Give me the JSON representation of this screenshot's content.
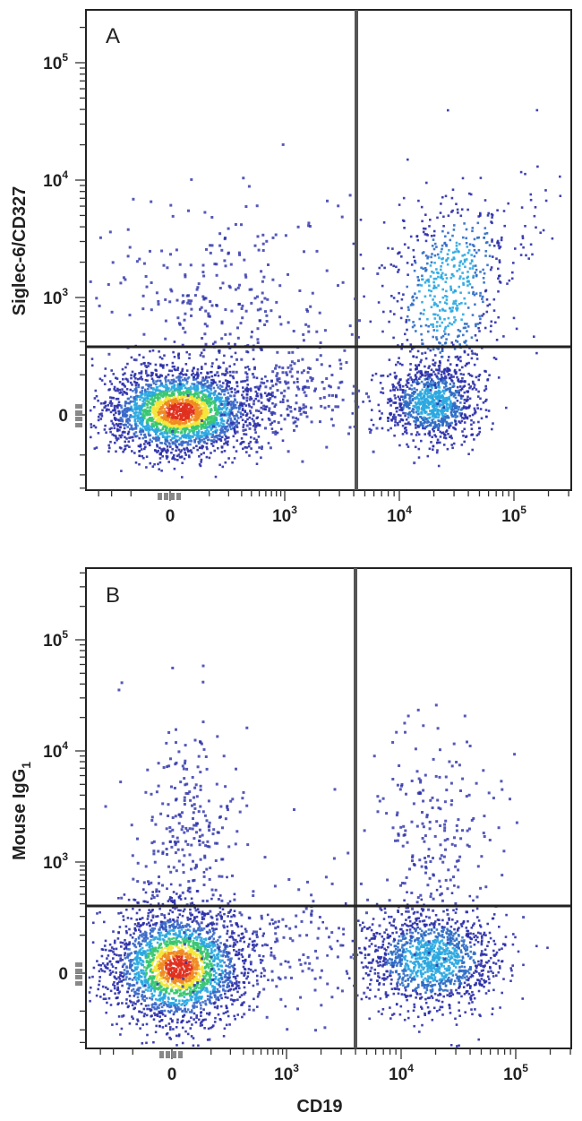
{
  "chart_data": [
    {
      "type": "scatter",
      "panel_label": "A",
      "title": "",
      "xlabel": "",
      "ylabel": "Siglec-6/CD327",
      "x_scale": "biexponential",
      "y_scale": "biexponential",
      "x_tick_labels": [
        "0",
        "10^3",
        "10^4",
        "10^5"
      ],
      "y_tick_labels": [
        "0",
        "10^3",
        "10^4",
        "10^5"
      ],
      "quadrant_gate": {
        "x": 3500,
        "y": 300
      },
      "populations": [
        {
          "name": "",
          "center_x": 60,
          "center_y": 20,
          "density": "high",
          "color_scale": "blue-green-yellow-red"
        },
        {
          "name": "",
          "center_x": 18000,
          "center_y": 40,
          "density": "medium",
          "color_scale": "blue-cyan"
        },
        {
          "name": "",
          "center_x": 22000,
          "center_y": 800,
          "density": "low",
          "color_scale": "blue"
        }
      ]
    },
    {
      "type": "scatter",
      "panel_label": "B",
      "title": "",
      "xlabel": "CD19",
      "ylabel": "Mouse IgG",
      "ylabel_subscript": "1",
      "x_scale": "biexponential",
      "y_scale": "biexponential",
      "x_tick_labels": [
        "0",
        "10^3",
        "10^4",
        "10^5"
      ],
      "y_tick_labels": [
        "0",
        "10^3",
        "10^4",
        "10^5"
      ],
      "quadrant_gate": {
        "x": 3500,
        "y": 300
      },
      "populations": [
        {
          "name": "",
          "center_x": 40,
          "center_y": 15,
          "density": "high",
          "color_scale": "blue-green-yellow-red"
        },
        {
          "name": "",
          "center_x": 18000,
          "center_y": 20,
          "density": "medium",
          "color_scale": "blue-cyan"
        }
      ]
    }
  ],
  "colors": {
    "low_density": "#2b2fa8",
    "mid_density": "#2aa7e0",
    "high_density": "#38c770",
    "peak_density": "#f5e63a",
    "max_density": "#e0301e"
  }
}
